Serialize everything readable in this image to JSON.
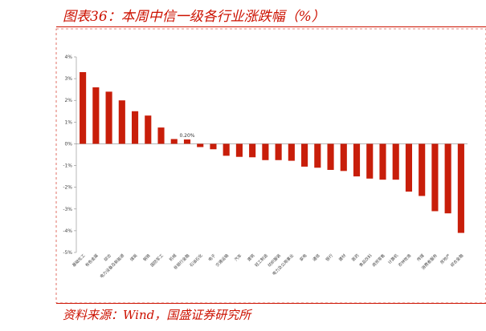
{
  "header": {
    "title": "图表36：本周中信一级各行业涨跌幅（%）"
  },
  "footer": {
    "source": "资料来源：Wind，国盛证券研究所"
  },
  "colors": {
    "accent": "#cc1100",
    "bar": "#c81e0a",
    "frame": "#cc1100"
  },
  "chart_data": {
    "type": "bar",
    "title": "",
    "xlabel": "",
    "ylabel": "",
    "ylim": [
      -5,
      4
    ],
    "yticks": [
      4,
      3,
      2,
      1,
      0,
      -1,
      -2,
      -3,
      -4,
      -5
    ],
    "ytick_labels": [
      "4%",
      "3%",
      "2%",
      "1%",
      "0%",
      "-1%",
      "-2%",
      "-3%",
      "-4%",
      "-5%"
    ],
    "grid": false,
    "categories": [
      "基础化工",
      "有色金属",
      "综合",
      "电力设备及新能源",
      "煤炭",
      "钢铁",
      "国防军工",
      "机械",
      "非银行金融",
      "石油石化",
      "电子",
      "交通运输",
      "汽车",
      "建筑",
      "轻工制造",
      "纺织服装",
      "电力及公用事业",
      "家电",
      "通信",
      "银行",
      "建材",
      "医药",
      "食品饮料",
      "商贸零售",
      "计算机",
      "农林牧渔",
      "传媒",
      "消费者服务",
      "房地产",
      "综合金融"
    ],
    "values": [
      3.3,
      2.6,
      2.4,
      2.0,
      1.5,
      1.3,
      0.75,
      0.22,
      0.2,
      -0.15,
      -0.25,
      -0.55,
      -0.6,
      -0.62,
      -0.75,
      -0.75,
      -0.78,
      -1.05,
      -1.1,
      -1.2,
      -1.25,
      -1.5,
      -1.6,
      -1.65,
      -1.65,
      -2.2,
      -2.4,
      -3.1,
      -3.2,
      -4.1
    ],
    "data_labels": [
      {
        "index": 8,
        "text": "0.20%"
      }
    ]
  }
}
